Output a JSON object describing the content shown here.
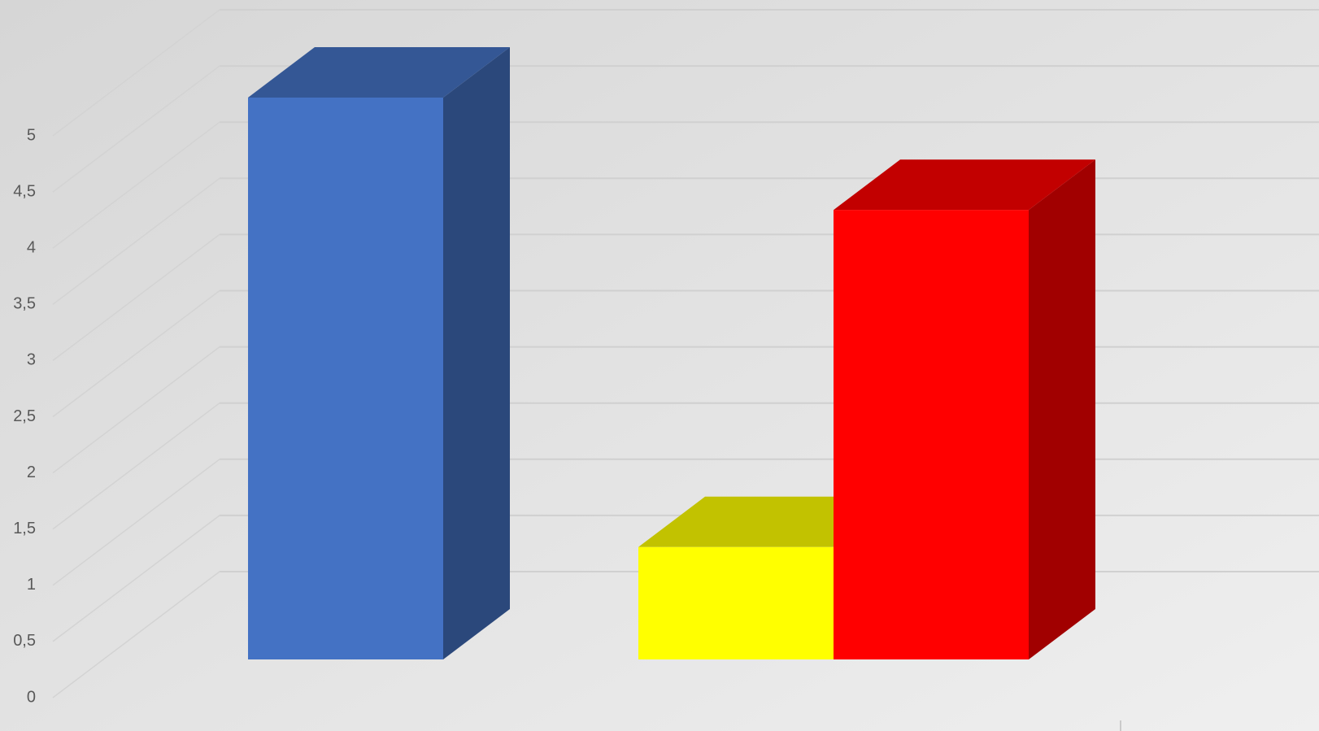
{
  "chart_data": {
    "type": "bar3d",
    "categories": [
      null,
      null,
      null
    ],
    "values": [
      5,
      1,
      4
    ],
    "colors": [
      "#4472c4",
      "#ffff00",
      "#ff0000"
    ],
    "ylim": [
      0,
      5
    ],
    "yticks": [
      0,
      {
        "value": 0.5,
        "label": "0,5"
      },
      1,
      {
        "value": 1.5,
        "label": "1,5"
      },
      2,
      {
        "value": 2.5,
        "label": "2,5"
      },
      3,
      {
        "value": 3.5,
        "label": "3,5"
      },
      4,
      {
        "value": 4.5,
        "label": "4,5"
      },
      5
    ],
    "grid": true
  }
}
